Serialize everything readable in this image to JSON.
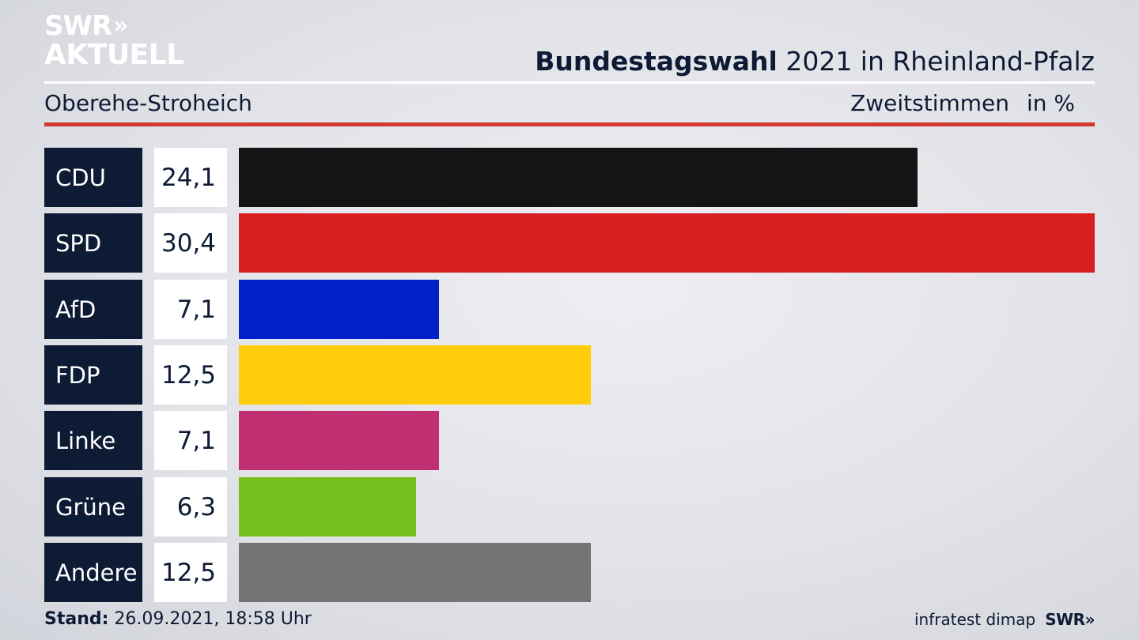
{
  "brand": {
    "line1": "SWR",
    "chevrons": "»",
    "line2": "AKTUELL"
  },
  "header": {
    "title_bold": "Bundestagswahl",
    "title_rest": " 2021 in Rheinland-Pfalz",
    "region": "Oberehe-Stroheich",
    "vote_type": "Zweitstimmen",
    "unit": "in %"
  },
  "footer": {
    "stand_label": "Stand:",
    "stand_value": " 26.09.2021, 18:58 Uhr",
    "source": "infratest dimap",
    "brand_small": "SWR»"
  },
  "chart_data": {
    "type": "bar",
    "orientation": "horizontal",
    "categories": [
      "CDU",
      "SPD",
      "AfD",
      "FDP",
      "Linke",
      "Grüne",
      "Andere"
    ],
    "values": [
      24.1,
      30.4,
      7.1,
      12.5,
      7.1,
      6.3,
      12.5
    ],
    "value_labels": [
      "24,1",
      "30,4",
      "7,1",
      "12,5",
      "7,1",
      "6,3",
      "12,5"
    ],
    "colors": [
      "#141414",
      "#d71f1f",
      "#0020c9",
      "#ffcc0a",
      "#c02f72",
      "#77bf1c",
      "#747477"
    ],
    "unit": "%",
    "xlim": [
      0,
      30.4
    ],
    "grid": false
  }
}
